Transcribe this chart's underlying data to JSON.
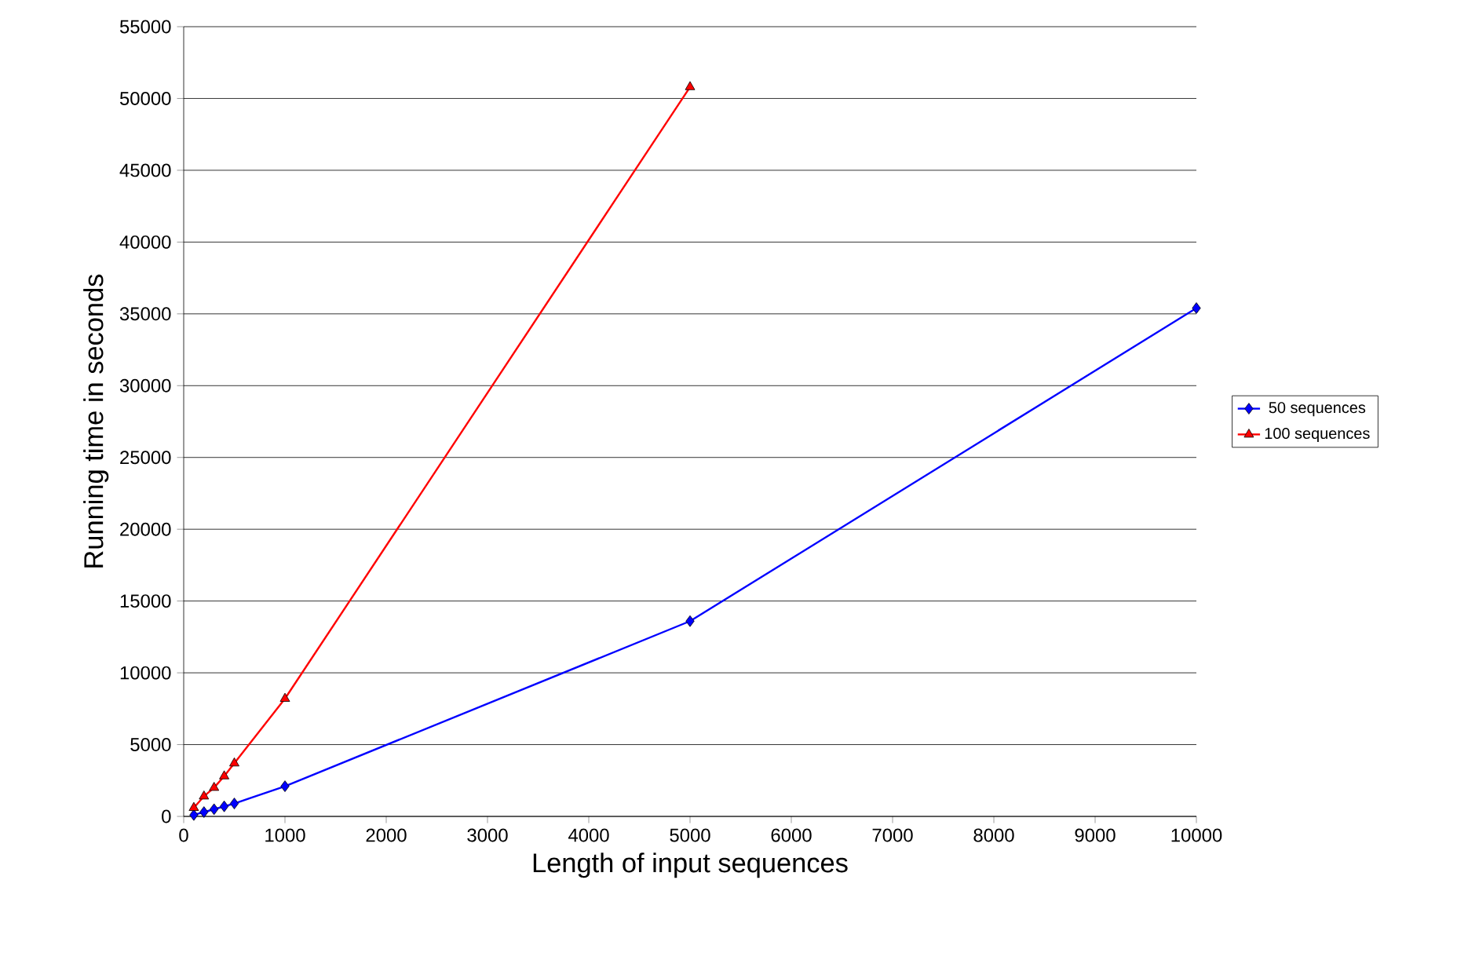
{
  "chart_data": {
    "type": "line",
    "xlabel": "Length of input sequences",
    "ylabel": "Running time in seconds",
    "xlim": [
      0,
      10000
    ],
    "ylim": [
      0,
      55000
    ],
    "xticks": [
      0,
      1000,
      2000,
      3000,
      4000,
      5000,
      6000,
      7000,
      8000,
      9000,
      10000
    ],
    "yticks": [
      0,
      5000,
      10000,
      15000,
      20000,
      25000,
      30000,
      35000,
      40000,
      45000,
      50000,
      55000
    ],
    "grid": "y",
    "legend": "right",
    "series": [
      {
        "name": "50 sequences",
        "color": "#0000ff",
        "marker": "diamond",
        "x": [
          100,
          200,
          300,
          400,
          500,
          1000,
          5000,
          10000
        ],
        "values": [
          100,
          300,
          500,
          700,
          900,
          2100,
          13600,
          35400
        ]
      },
      {
        "name": "100 sequences",
        "color": "#ff0000",
        "marker": "triangle",
        "x": [
          100,
          200,
          300,
          400,
          500,
          1000,
          5000
        ],
        "values": [
          600,
          1400,
          2000,
          2800,
          3700,
          8200,
          50800
        ]
      }
    ]
  }
}
